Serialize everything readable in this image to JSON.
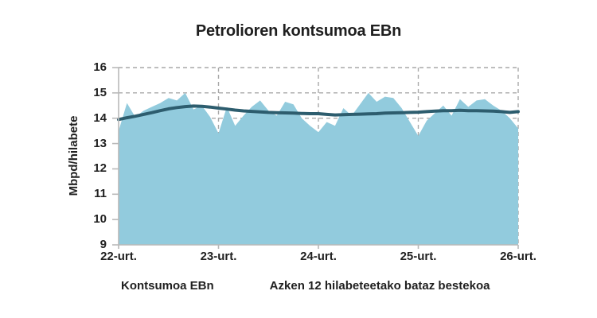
{
  "chart_data": {
    "type": "area",
    "title": "Petrolioren kontsumoa EBn",
    "ylabel": "Mbpd/hilabete",
    "ylim": [
      9,
      16
    ],
    "y_ticks": [
      9,
      10,
      11,
      12,
      13,
      14,
      15,
      16
    ],
    "x_tick_labels": [
      "22-urt.",
      "23-urt.",
      "24-urt.",
      "25-urt.",
      "26-urt."
    ],
    "x_resolution": "monthly",
    "grid": "dashed",
    "legend_position": "bottom",
    "series": [
      {
        "name": "Kontsumoa EBn",
        "type": "area",
        "color": "#92cbdd",
        "values": [
          13.5,
          14.6,
          14.05,
          14.3,
          14.45,
          14.6,
          14.8,
          14.7,
          15.0,
          14.35,
          14.5,
          14.05,
          13.4,
          14.45,
          13.7,
          14.1,
          14.45,
          14.7,
          14.3,
          14.1,
          14.65,
          14.55,
          14.0,
          13.7,
          13.45,
          13.85,
          13.7,
          14.4,
          14.1,
          14.55,
          15.0,
          14.65,
          14.85,
          14.8,
          14.4,
          13.85,
          13.3,
          13.9,
          14.2,
          14.5,
          14.1,
          14.75,
          14.45,
          14.7,
          14.75,
          14.5,
          14.3,
          14.0,
          13.6
        ]
      },
      {
        "name": "Azken 12 hilabeteetako bataz bestekoa",
        "type": "line",
        "color": "#2d5d6e",
        "values": [
          13.95,
          14.02,
          14.08,
          14.15,
          14.22,
          14.3,
          14.37,
          14.42,
          14.46,
          14.48,
          14.47,
          14.44,
          14.4,
          14.36,
          14.32,
          14.29,
          14.27,
          14.25,
          14.23,
          14.22,
          14.21,
          14.2,
          14.19,
          14.18,
          14.18,
          14.15,
          14.13,
          14.14,
          14.15,
          14.16,
          14.17,
          14.18,
          14.2,
          14.21,
          14.22,
          14.23,
          14.24,
          14.26,
          14.28,
          14.3,
          14.3,
          14.31,
          14.3,
          14.3,
          14.29,
          14.28,
          14.26,
          14.23,
          14.26
        ]
      }
    ],
    "colors": {
      "area": "#92cbdd",
      "average_line": "#2d5d6e",
      "gridline": "#a9a9a9",
      "axis": "#b9b9b9",
      "text": "#212121",
      "background": "#ffffff"
    }
  }
}
